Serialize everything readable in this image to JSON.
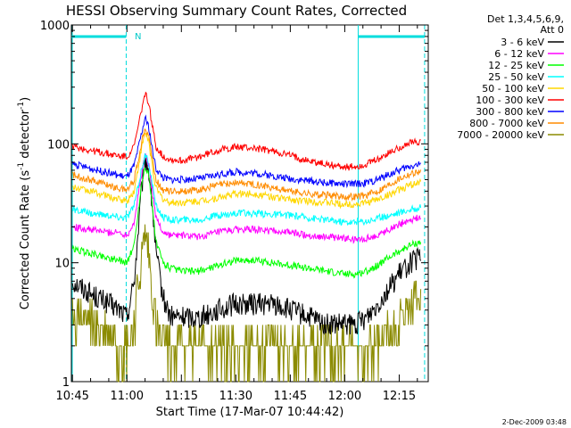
{
  "chart_data": {
    "type": "line",
    "title": "HESSI Observing Summary Count Rates, Corrected",
    "xlabel": "Start Time (17-Mar-07 10:44:42)",
    "ylabel_main": "Corrected Count Rate (s",
    "ylabel_sup1": "-1",
    "ylabel_mid": " detector",
    "ylabel_sup2": "-1",
    "ylabel_end": ")",
    "yscale": "log",
    "xlim": [
      644.7,
      743.0
    ],
    "ylim": [
      1,
      1000
    ],
    "x_ticks": [
      {
        "value": 645,
        "label": "10:45"
      },
      {
        "value": 660,
        "label": "11:00"
      },
      {
        "value": 675,
        "label": "11:15"
      },
      {
        "value": 690,
        "label": "11:30"
      },
      {
        "value": 705,
        "label": "11:45"
      },
      {
        "value": 720,
        "label": "12:00"
      },
      {
        "value": 735,
        "label": "12:15"
      }
    ],
    "y_ticks": [
      {
        "value": 1,
        "label": "1"
      },
      {
        "value": 10,
        "label": "10"
      },
      {
        "value": 100,
        "label": "100"
      },
      {
        "value": 1000,
        "label": "1000"
      }
    ],
    "grid": false,
    "legend_position": "right",
    "legend_header": [
      "Det 1,3,4,5,6,9,",
      "Att 0"
    ],
    "x_units": "minutes after 00:00 UT",
    "night_marker_label": "N",
    "night_intervals": [
      [
        644.7,
        659.8
      ],
      [
        723.7,
        742.0
      ]
    ],
    "saa_times": [
      659.8,
      723.7,
      742.0
    ],
    "series": [
      {
        "name": "3 - 6 keV",
        "color": "#000000",
        "x": [
          645,
          650,
          655,
          658,
          660,
          662,
          664,
          665,
          666,
          667,
          668,
          670,
          672,
          675,
          680,
          685,
          690,
          695,
          700,
          705,
          710,
          715,
          720,
          723,
          726,
          729,
          732,
          735,
          738,
          741
        ],
        "y": [
          7,
          5.5,
          4.5,
          4,
          3.5,
          7,
          40,
          75,
          60,
          30,
          12,
          5,
          3.5,
          3.5,
          3.5,
          4,
          4.5,
          4.5,
          4.5,
          4,
          3.5,
          3,
          3,
          3,
          3.5,
          4.5,
          6,
          8,
          10,
          11
        ]
      },
      {
        "name": "6 - 12 keV",
        "color": "#ff00ff",
        "x": [
          645,
          650,
          655,
          658,
          660,
          662,
          664,
          665,
          666,
          667,
          668,
          670,
          672,
          675,
          680,
          685,
          690,
          695,
          700,
          705,
          710,
          715,
          720,
          723,
          726,
          729,
          732,
          735,
          738,
          741
        ],
        "y": [
          20,
          19,
          18,
          18,
          17,
          22,
          55,
          80,
          68,
          40,
          24,
          18,
          17,
          17,
          16.5,
          18,
          19,
          19,
          18.5,
          18,
          17,
          16.5,
          16,
          15.5,
          16,
          17,
          19,
          21,
          23,
          24
        ]
      },
      {
        "name": "12 - 25 keV",
        "color": "#00ff00",
        "x": [
          645,
          650,
          655,
          658,
          660,
          662,
          664,
          665,
          666,
          667,
          668,
          670,
          672,
          675,
          680,
          685,
          690,
          695,
          700,
          705,
          710,
          715,
          720,
          723,
          726,
          729,
          732,
          735,
          738,
          741
        ],
        "y": [
          13,
          12,
          11,
          10.5,
          10,
          14,
          45,
          65,
          55,
          30,
          15,
          10,
          9,
          8.5,
          8.5,
          9.5,
          10.5,
          10.5,
          10,
          9.5,
          9,
          8.5,
          8,
          8,
          8.5,
          9.5,
          11,
          12.5,
          14,
          15
        ]
      },
      {
        "name": "25 - 50 keV",
        "color": "#00ffff",
        "x": [
          645,
          650,
          655,
          658,
          660,
          662,
          664,
          665,
          666,
          667,
          668,
          670,
          672,
          675,
          680,
          685,
          690,
          695,
          700,
          705,
          710,
          715,
          720,
          723,
          726,
          729,
          732,
          735,
          738,
          741
        ],
        "y": [
          28,
          26,
          25,
          24,
          24,
          30,
          60,
          80,
          70,
          45,
          30,
          24,
          23,
          23,
          23,
          25,
          26,
          26,
          25.5,
          25,
          24,
          23,
          22,
          22,
          22.5,
          23.5,
          25,
          26.5,
          28,
          29
        ]
      },
      {
        "name": "50 - 100 keV",
        "color": "#ffd700",
        "x": [
          645,
          650,
          655,
          658,
          660,
          662,
          664,
          665,
          666,
          667,
          668,
          670,
          672,
          675,
          680,
          685,
          690,
          695,
          700,
          705,
          710,
          715,
          720,
          723,
          726,
          729,
          732,
          735,
          738,
          741
        ],
        "y": [
          43,
          40,
          36,
          34,
          33,
          40,
          90,
          125,
          105,
          65,
          42,
          34,
          32,
          32,
          33,
          35,
          38,
          38,
          36,
          34,
          33,
          32,
          31,
          31,
          32,
          34,
          37,
          41,
          45,
          48
        ]
      },
      {
        "name": "100 - 300 keV",
        "color": "#ff0000",
        "x": [
          645,
          650,
          655,
          658,
          660,
          662,
          664,
          665,
          666,
          667,
          668,
          670,
          672,
          675,
          680,
          685,
          690,
          695,
          700,
          705,
          710,
          715,
          720,
          723,
          726,
          729,
          732,
          735,
          738,
          741
        ],
        "y": [
          95,
          88,
          82,
          79,
          78,
          95,
          190,
          270,
          220,
          140,
          95,
          78,
          74,
          72,
          78,
          88,
          94,
          92,
          87,
          80,
          72,
          67,
          64,
          64,
          67,
          74,
          83,
          93,
          102,
          106
        ]
      },
      {
        "name": "300 - 800 keV",
        "color": "#0000ff",
        "x": [
          645,
          650,
          655,
          658,
          660,
          662,
          664,
          665,
          666,
          667,
          668,
          670,
          672,
          675,
          680,
          685,
          690,
          695,
          700,
          705,
          710,
          715,
          720,
          723,
          726,
          729,
          732,
          735,
          738,
          741
        ],
        "y": [
          68,
          62,
          57,
          54,
          53,
          65,
          120,
          165,
          140,
          90,
          62,
          52,
          50,
          50,
          51,
          55,
          58,
          57,
          54,
          51,
          49,
          47,
          46,
          46,
          47,
          50,
          55,
          60,
          65,
          68
        ]
      },
      {
        "name": "800 - 7000 keV",
        "color": "#ff8c00",
        "x": [
          645,
          650,
          655,
          658,
          660,
          662,
          664,
          665,
          666,
          667,
          668,
          670,
          672,
          675,
          680,
          685,
          690,
          695,
          700,
          705,
          710,
          715,
          720,
          723,
          726,
          729,
          732,
          735,
          738,
          741
        ],
        "y": [
          55,
          50,
          45,
          42,
          41,
          50,
          100,
          140,
          118,
          75,
          50,
          41,
          40,
          40,
          41,
          45,
          47,
          46,
          43,
          40,
          38,
          37,
          36,
          36,
          37,
          40,
          45,
          51,
          56,
          59
        ]
      },
      {
        "name": "7000 - 20000 keV",
        "color": "#8b8b00",
        "x": [
          645,
          650,
          655,
          658,
          660,
          662,
          664,
          665,
          666,
          667,
          668,
          670,
          672,
          675,
          680,
          685,
          690,
          695,
          700,
          705,
          710,
          715,
          720,
          723,
          726,
          729,
          732,
          735,
          738,
          741
        ],
        "y": [
          3.5,
          3,
          2.5,
          2,
          2,
          3,
          10,
          17,
          12,
          5,
          3,
          2,
          2,
          2,
          2,
          2,
          2,
          2,
          2,
          2,
          2,
          2,
          2,
          2,
          2,
          2,
          2.5,
          3,
          4,
          5
        ]
      }
    ]
  },
  "footer_timestamp": "2-Dec-2009 03:48"
}
